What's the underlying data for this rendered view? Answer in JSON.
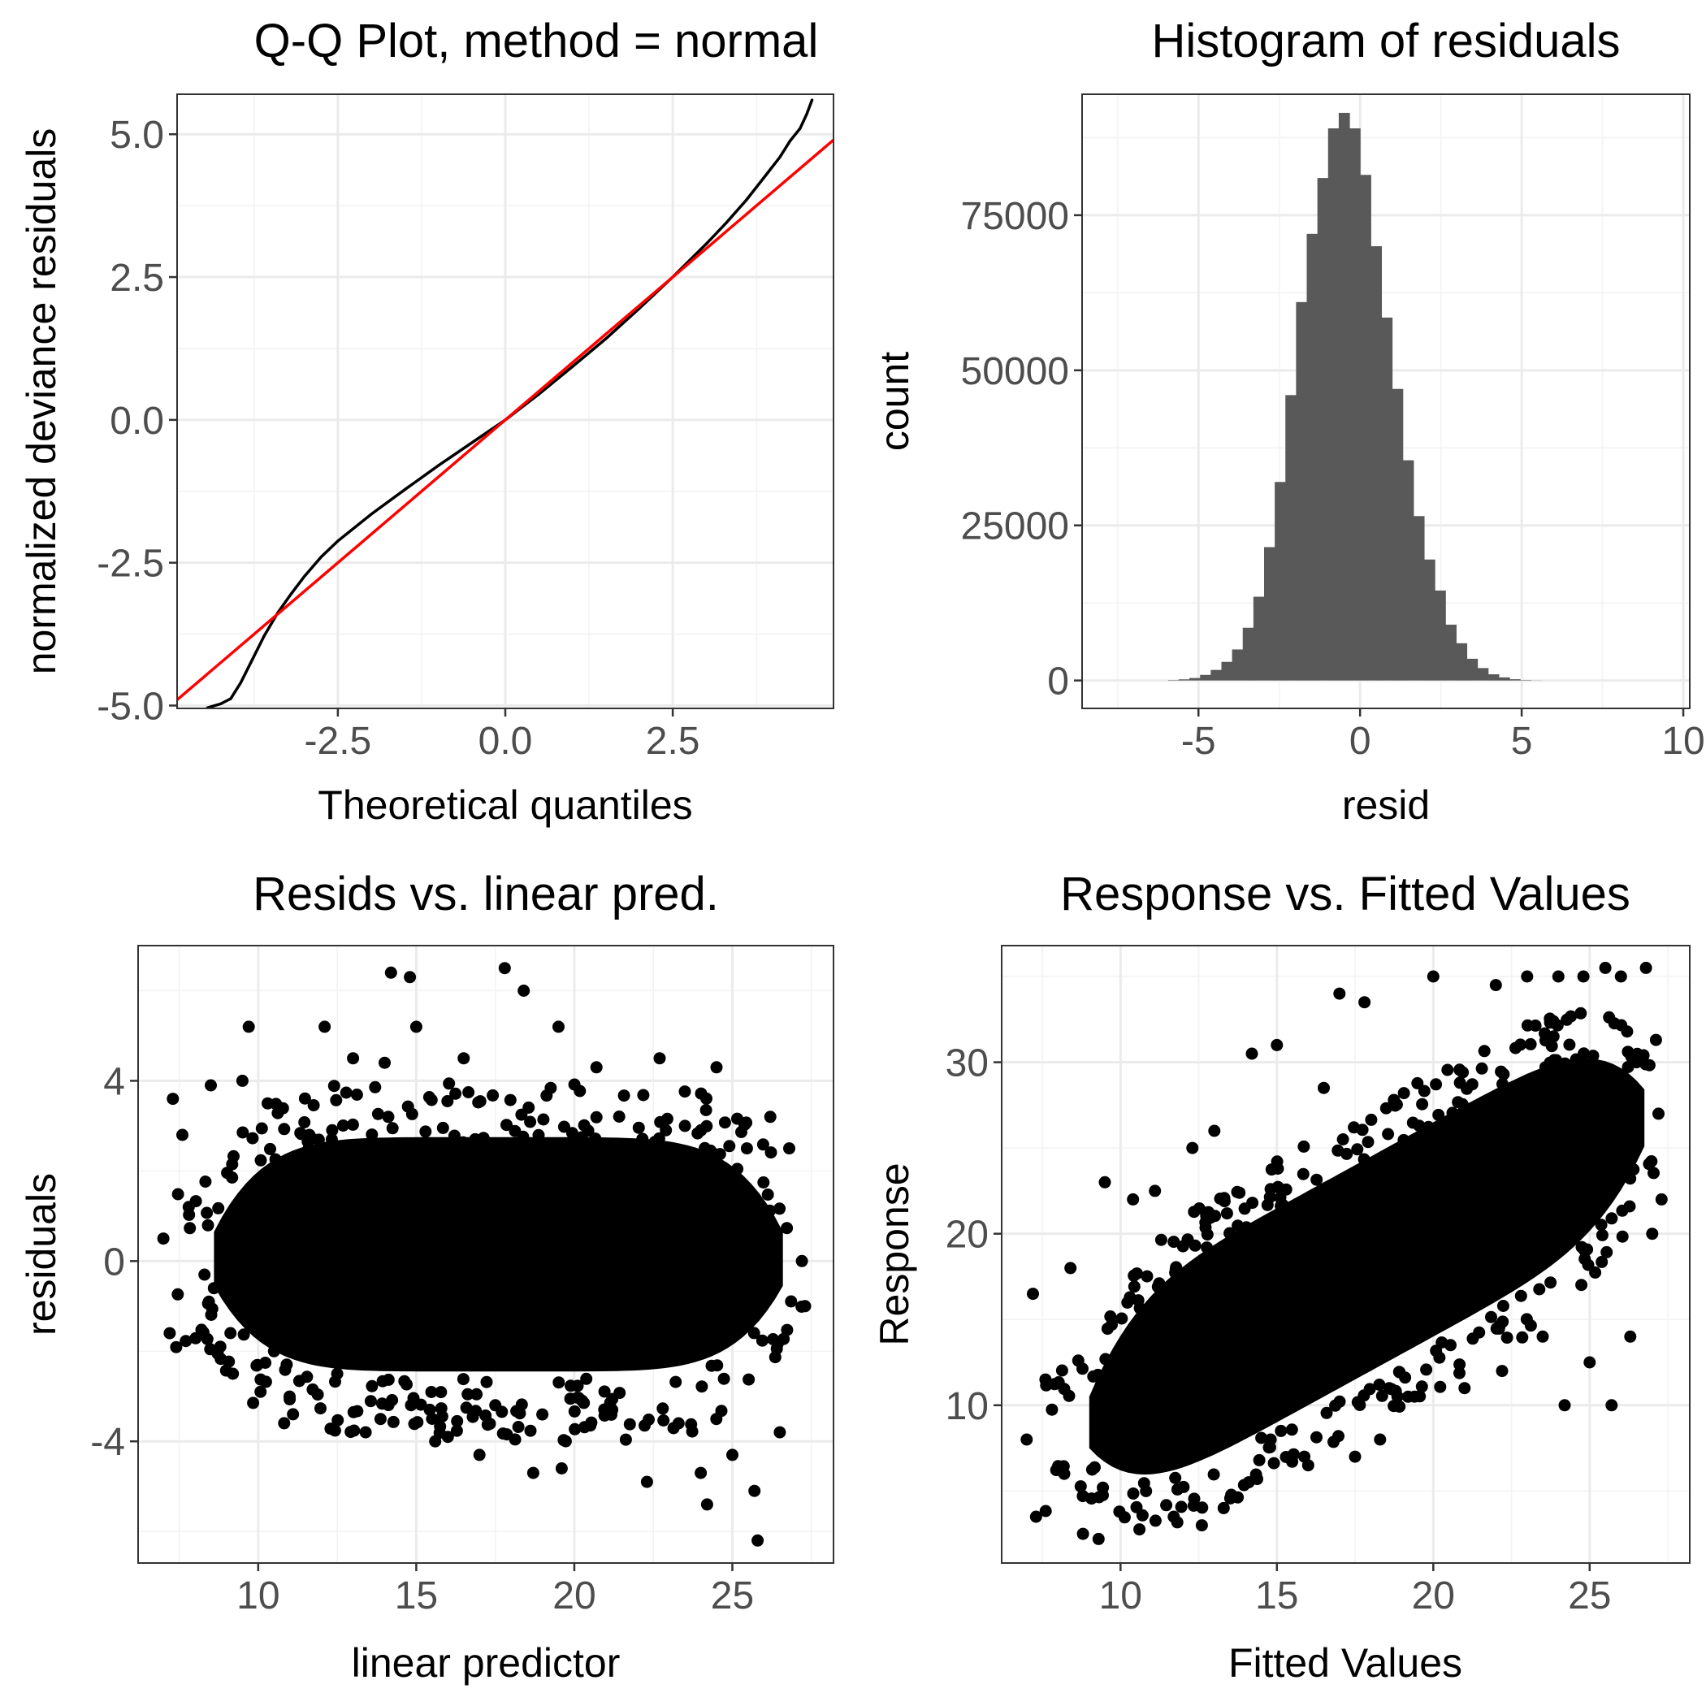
{
  "chart_data": [
    {
      "type": "scatter",
      "title": "Q-Q Plot, method = normal",
      "xlabel": "Theoretical quantiles",
      "ylabel": "normalized deviance residuals",
      "xlim": [
        -4.9,
        4.9
      ],
      "ylim": [
        -5.05,
        5.7
      ],
      "xticks": [
        -2.5,
        0.0,
        2.5
      ],
      "xtick_labels": [
        "-2.5",
        "0.0",
        "2.5"
      ],
      "yticks": [
        -5.0,
        -2.5,
        0.0,
        2.5,
        5.0
      ],
      "ytick_labels": [
        "-5.0",
        "-2.5",
        "0.0",
        "2.5",
        "5.0"
      ],
      "grid": true,
      "reference_line": {
        "slope": 1.0,
        "intercept": 0.0,
        "color": "#ff0000"
      },
      "points": [
        [
          -4.45,
          -5.04
        ],
        [
          -4.25,
          -4.97
        ],
        [
          -4.1,
          -4.88
        ],
        [
          -3.95,
          -4.6
        ],
        [
          -3.8,
          -4.25
        ],
        [
          -3.6,
          -3.78
        ],
        [
          -3.4,
          -3.38
        ],
        [
          -3.2,
          -3.05
        ],
        [
          -3.0,
          -2.74
        ],
        [
          -2.75,
          -2.4
        ],
        [
          -2.5,
          -2.12
        ],
        [
          -2.0,
          -1.65
        ],
        [
          -1.5,
          -1.22
        ],
        [
          -1.0,
          -0.8
        ],
        [
          -0.5,
          -0.4
        ],
        [
          0.0,
          0.0
        ],
        [
          0.5,
          0.45
        ],
        [
          1.0,
          0.93
        ],
        [
          1.5,
          1.42
        ],
        [
          2.0,
          1.95
        ],
        [
          2.5,
          2.5
        ],
        [
          3.0,
          3.08
        ],
        [
          3.3,
          3.45
        ],
        [
          3.6,
          3.85
        ],
        [
          3.9,
          4.3
        ],
        [
          4.1,
          4.6
        ],
        [
          4.25,
          4.88
        ],
        [
          4.4,
          5.1
        ],
        [
          4.5,
          5.35
        ],
        [
          4.58,
          5.6
        ]
      ],
      "point_color": "#000000"
    },
    {
      "type": "bar",
      "title": "Histogram of residuals",
      "xlabel": "resid",
      "ylabel": "count",
      "xlim": [
        -8.6,
        10.2
      ],
      "ylim": [
        -4500,
        94500
      ],
      "xticks": [
        -5,
        0,
        5,
        10
      ],
      "xtick_labels": [
        "-5",
        "0",
        "5",
        "10"
      ],
      "yticks": [
        0,
        25000,
        50000,
        75000
      ],
      "ytick_labels": [
        "0",
        "25000",
        "50000",
        "75000"
      ],
      "grid": true,
      "bin_width": 0.33,
      "bin_start": -5.94,
      "values": [
        60,
        180,
        400,
        900,
        1700,
        3000,
        5000,
        8500,
        13500,
        21500,
        32000,
        46000,
        61000,
        72000,
        81000,
        89000,
        91500,
        89000,
        81500,
        70000,
        58500,
        47000,
        35500,
        26500,
        19500,
        14500,
        9000,
        6000,
        3500,
        2000,
        1000,
        500,
        200,
        60,
        15
      ],
      "bar_color": "#595959"
    },
    {
      "type": "scatter",
      "title": "Resids vs. linear pred.",
      "xlabel": "linear predictor",
      "ylabel": "residuals",
      "xlim": [
        6.2,
        28.2
      ],
      "ylim": [
        -6.7,
        7.0
      ],
      "xticks": [
        10,
        15,
        20,
        25
      ],
      "xtick_labels": [
        "10",
        "15",
        "20",
        "25"
      ],
      "yticks": [
        -4,
        0,
        4
      ],
      "ytick_labels": [
        "-4",
        "0",
        "4"
      ],
      "grid": true,
      "points": [
        [
          7.0,
          0.5
        ],
        [
          7.2,
          -1.6
        ],
        [
          7.3,
          3.6
        ],
        [
          7.6,
          2.8
        ],
        [
          7.8,
          1.2
        ],
        [
          8.3,
          -0.3
        ],
        [
          8.5,
          3.9
        ],
        [
          8.8,
          -1.9
        ],
        [
          9.2,
          -2.5
        ],
        [
          9.5,
          4.0
        ],
        [
          9.7,
          5.2
        ],
        [
          10.3,
          3.5
        ],
        [
          10.5,
          -2.0
        ],
        [
          11.1,
          -3.4
        ],
        [
          12.1,
          5.2
        ],
        [
          12.5,
          -2.5
        ],
        [
          13.0,
          4.5
        ],
        [
          13.4,
          -3.8
        ],
        [
          14.0,
          4.4
        ],
        [
          14.2,
          6.4
        ],
        [
          14.8,
          6.3
        ],
        [
          15.0,
          5.2
        ],
        [
          15.5,
          -3.5
        ],
        [
          15.6,
          -4.0
        ],
        [
          16.0,
          -3.9
        ],
        [
          16.5,
          4.5
        ],
        [
          17.0,
          -4.3
        ],
        [
          17.5,
          -3.2
        ],
        [
          17.8,
          6.5
        ],
        [
          18.4,
          6.0
        ],
        [
          18.7,
          -4.7
        ],
        [
          19.5,
          5.2
        ],
        [
          19.6,
          -4.6
        ],
        [
          20.7,
          4.3
        ],
        [
          21.2,
          -3.3
        ],
        [
          22.3,
          -4.9
        ],
        [
          22.7,
          4.5
        ],
        [
          23.3,
          -3.6
        ],
        [
          23.5,
          3.0
        ],
        [
          24.0,
          -4.7
        ],
        [
          24.2,
          -5.4
        ],
        [
          24.5,
          4.3
        ],
        [
          25.0,
          -4.3
        ],
        [
          25.7,
          -5.1
        ],
        [
          25.8,
          -6.2
        ],
        [
          26.2,
          3.2
        ],
        [
          26.5,
          -3.8
        ],
        [
          26.8,
          2.5
        ],
        [
          27.2,
          0.0
        ],
        [
          27.3,
          -1.0
        ]
      ],
      "point_color": "#000000"
    },
    {
      "type": "scatter",
      "title": "Response vs. Fitted Values",
      "xlabel": "Fitted Values",
      "ylabel": "Response",
      "xlim": [
        6.2,
        28.2
      ],
      "ylim": [
        0.8,
        36.8
      ],
      "xticks": [
        10,
        15,
        20,
        25
      ],
      "xtick_labels": [
        "10",
        "15",
        "20",
        "25"
      ],
      "yticks": [
        10,
        20,
        30
      ],
      "ytick_labels": [
        "10",
        "20",
        "30"
      ],
      "grid": true,
      "points": [
        [
          7.0,
          8.0
        ],
        [
          7.2,
          16.5
        ],
        [
          7.3,
          3.5
        ],
        [
          7.6,
          11.5
        ],
        [
          8.2,
          6.0
        ],
        [
          8.4,
          18.0
        ],
        [
          8.8,
          2.5
        ],
        [
          9.3,
          2.2
        ],
        [
          9.5,
          23.0
        ],
        [
          10.4,
          22.0
        ],
        [
          11.1,
          22.5
        ],
        [
          11.7,
          3.5
        ],
        [
          12.3,
          25.0
        ],
        [
          12.6,
          3.0
        ],
        [
          13.0,
          26.0
        ],
        [
          13.3,
          4.0
        ],
        [
          14.2,
          30.5
        ],
        [
          14.8,
          8.0
        ],
        [
          15.0,
          31.0
        ],
        [
          16.0,
          6.5
        ],
        [
          16.5,
          28.5
        ],
        [
          17.0,
          34.0
        ],
        [
          17.5,
          7.0
        ],
        [
          17.8,
          33.5
        ],
        [
          18.3,
          8.0
        ],
        [
          19.4,
          10.5
        ],
        [
          20.0,
          35.0
        ],
        [
          21.0,
          11.0
        ],
        [
          22.0,
          34.5
        ],
        [
          22.2,
          12.0
        ],
        [
          23.0,
          35.0
        ],
        [
          23.5,
          14.0
        ],
        [
          24.0,
          35.0
        ],
        [
          24.2,
          10.0
        ],
        [
          24.8,
          35.0
        ],
        [
          25.0,
          12.5
        ],
        [
          25.5,
          35.5
        ],
        [
          25.7,
          10.0
        ],
        [
          26.0,
          35.0
        ],
        [
          26.3,
          14.0
        ],
        [
          26.8,
          35.5
        ],
        [
          27.0,
          20.0
        ],
        [
          27.2,
          27.0
        ],
        [
          27.3,
          22.0
        ],
        [
          26.5,
          30.0
        ]
      ],
      "point_color": "#000000"
    }
  ]
}
